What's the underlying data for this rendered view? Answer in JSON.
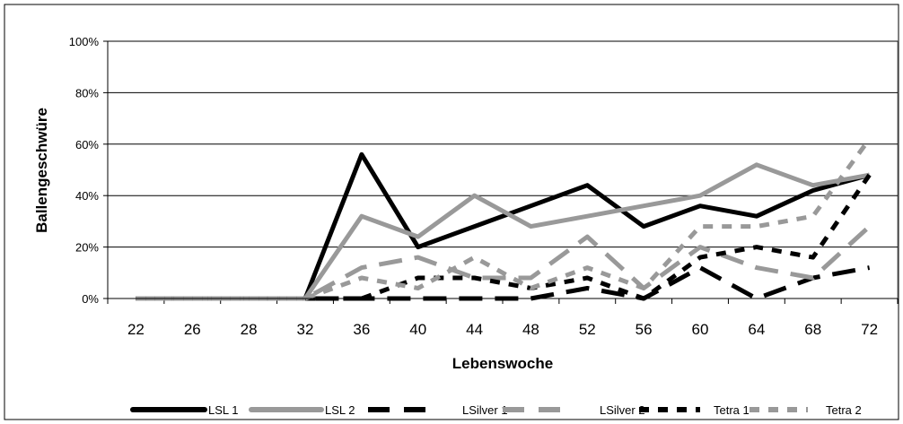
{
  "chart_data": {
    "type": "line",
    "xlabel": "Lebenswoche",
    "ylabel": "Ballengeschwüre",
    "categories": [
      "22",
      "26",
      "28",
      "32",
      "36",
      "40",
      "44",
      "48",
      "52",
      "56",
      "60",
      "64",
      "68",
      "72"
    ],
    "ylim": [
      0,
      100
    ],
    "yticks": [
      "0%",
      "20%",
      "40%",
      "60%",
      "80%",
      "100%"
    ],
    "y_tick_values": [
      0,
      20,
      40,
      60,
      80,
      100
    ],
    "grid": "horizontal",
    "legend_position": "bottom",
    "series": [
      {
        "name": "LSL 1",
        "color": "#000000",
        "style": "solid",
        "values": [
          0,
          0,
          0,
          0,
          56,
          20,
          28,
          36,
          44,
          28,
          36,
          32,
          42,
          48
        ]
      },
      {
        "name": "LSL 2",
        "color": "#999999",
        "style": "solid",
        "values": [
          0,
          0,
          0,
          0,
          32,
          24,
          40,
          28,
          32,
          36,
          40,
          52,
          44,
          48
        ]
      },
      {
        "name": "LSilver 1",
        "color": "#000000",
        "style": "longdash",
        "values": [
          0,
          0,
          0,
          0,
          0,
          0,
          0,
          0,
          4,
          0,
          12,
          0,
          8,
          12
        ]
      },
      {
        "name": "LSilver 2",
        "color": "#999999",
        "style": "longdash",
        "values": [
          0,
          0,
          0,
          0,
          12,
          16,
          8,
          8,
          24,
          4,
          20,
          12,
          8,
          28
        ]
      },
      {
        "name": "Tetra 1",
        "color": "#000000",
        "style": "shortdash",
        "values": [
          0,
          0,
          0,
          0,
          0,
          8,
          8,
          4,
          8,
          0,
          16,
          20,
          16,
          48
        ]
      },
      {
        "name": "Tetra 2",
        "color": "#999999",
        "style": "shortdash",
        "values": [
          0,
          0,
          0,
          0,
          8,
          4,
          16,
          4,
          12,
          4,
          28,
          28,
          32,
          62
        ]
      }
    ]
  }
}
